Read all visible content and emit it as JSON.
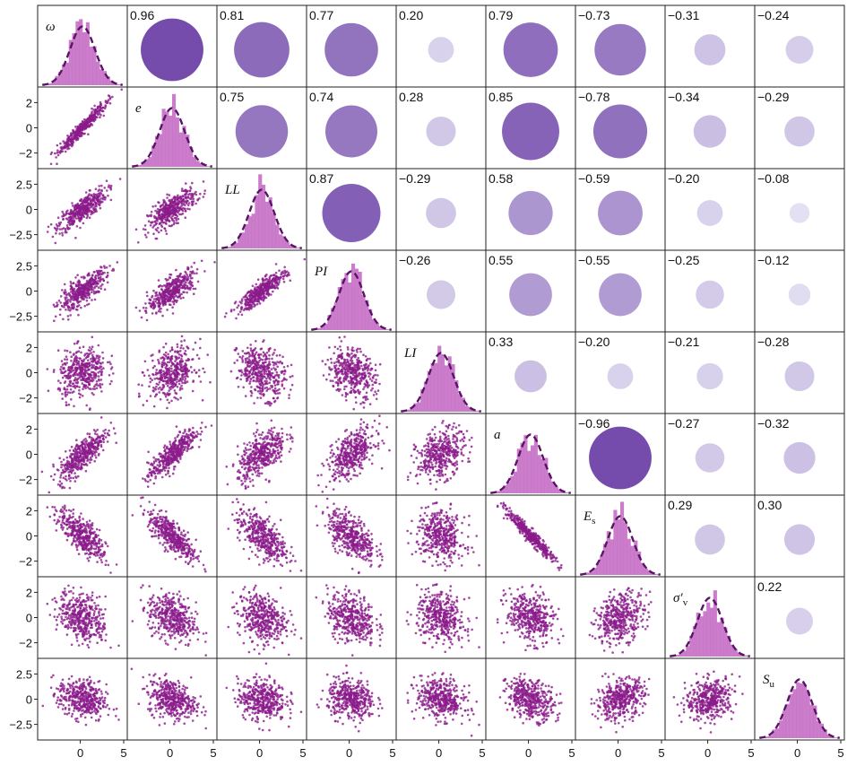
{
  "chart_data": {
    "type": "scatter-matrix",
    "variables": [
      "ω",
      "e",
      "LL",
      "PI",
      "LI",
      "a",
      "E_s",
      "σ'_v",
      "S_u"
    ],
    "diagonal_labels": [
      "ω",
      "e",
      "LL",
      "PI",
      "LI",
      "a",
      "E",
      "σ′",
      "S"
    ],
    "diagonal_label_subscripts": [
      "",
      "",
      "",
      "",
      "",
      "",
      "s",
      "v",
      "u"
    ],
    "correlations": [
      [
        null,
        "0.96",
        "0.81",
        "0.77",
        "0.20",
        "0.79",
        "−0.73",
        "−0.31",
        "−0.24"
      ],
      [
        null,
        null,
        "0.75",
        "0.74",
        "0.28",
        "0.85",
        "−0.78",
        "−0.34",
        "−0.29"
      ],
      [
        null,
        null,
        null,
        "0.87",
        "−0.29",
        "0.58",
        "−0.59",
        "−0.20",
        "−0.08"
      ],
      [
        null,
        null,
        null,
        null,
        "−0.26",
        "0.55",
        "−0.55",
        "−0.25",
        "−0.12"
      ],
      [
        null,
        null,
        null,
        null,
        null,
        "0.33",
        "−0.20",
        "−0.21",
        "−0.28"
      ],
      [
        null,
        null,
        null,
        null,
        null,
        null,
        "−0.96",
        "−0.27",
        "−0.32"
      ],
      [
        null,
        null,
        null,
        null,
        null,
        null,
        null,
        "0.29",
        "0.30"
      ],
      [
        null,
        null,
        null,
        null,
        null,
        null,
        null,
        null,
        "0.22"
      ],
      [
        null,
        null,
        null,
        null,
        null,
        null,
        null,
        null,
        null
      ]
    ],
    "y_ticks": [
      [],
      [
        "2",
        "0",
        "−2"
      ],
      [
        "2.5",
        "0",
        "−2.5"
      ],
      [
        "2.5",
        "0",
        "−2.5"
      ],
      [
        "2",
        "0",
        "−2"
      ],
      [
        "2",
        "0",
        "−2"
      ],
      [
        "2",
        "0",
        "−2"
      ],
      [
        "2",
        "0",
        "−2"
      ],
      [
        "2.5",
        "0",
        "−2.5"
      ]
    ],
    "y_tick_values": [
      [],
      [
        2,
        0,
        -2
      ],
      [
        2.5,
        0,
        -2.5
      ],
      [
        2.5,
        0,
        -2.5
      ],
      [
        2,
        0,
        -2
      ],
      [
        2,
        0,
        -2
      ],
      [
        2,
        0,
        -2
      ],
      [
        2,
        0,
        -2
      ],
      [
        2.5,
        0,
        -2.5
      ]
    ],
    "x_ticks": [
      "0",
      "5"
    ],
    "x_tick_values": [
      0,
      5
    ],
    "xlim": [
      -4.5,
      5
    ],
    "colors": {
      "scatter": "#8b1a8b",
      "histogram": "#c266c2",
      "density_curve": "#5a1466",
      "circle_strong": "#6f44a8",
      "circle_weak": "#e8e6f6"
    }
  }
}
